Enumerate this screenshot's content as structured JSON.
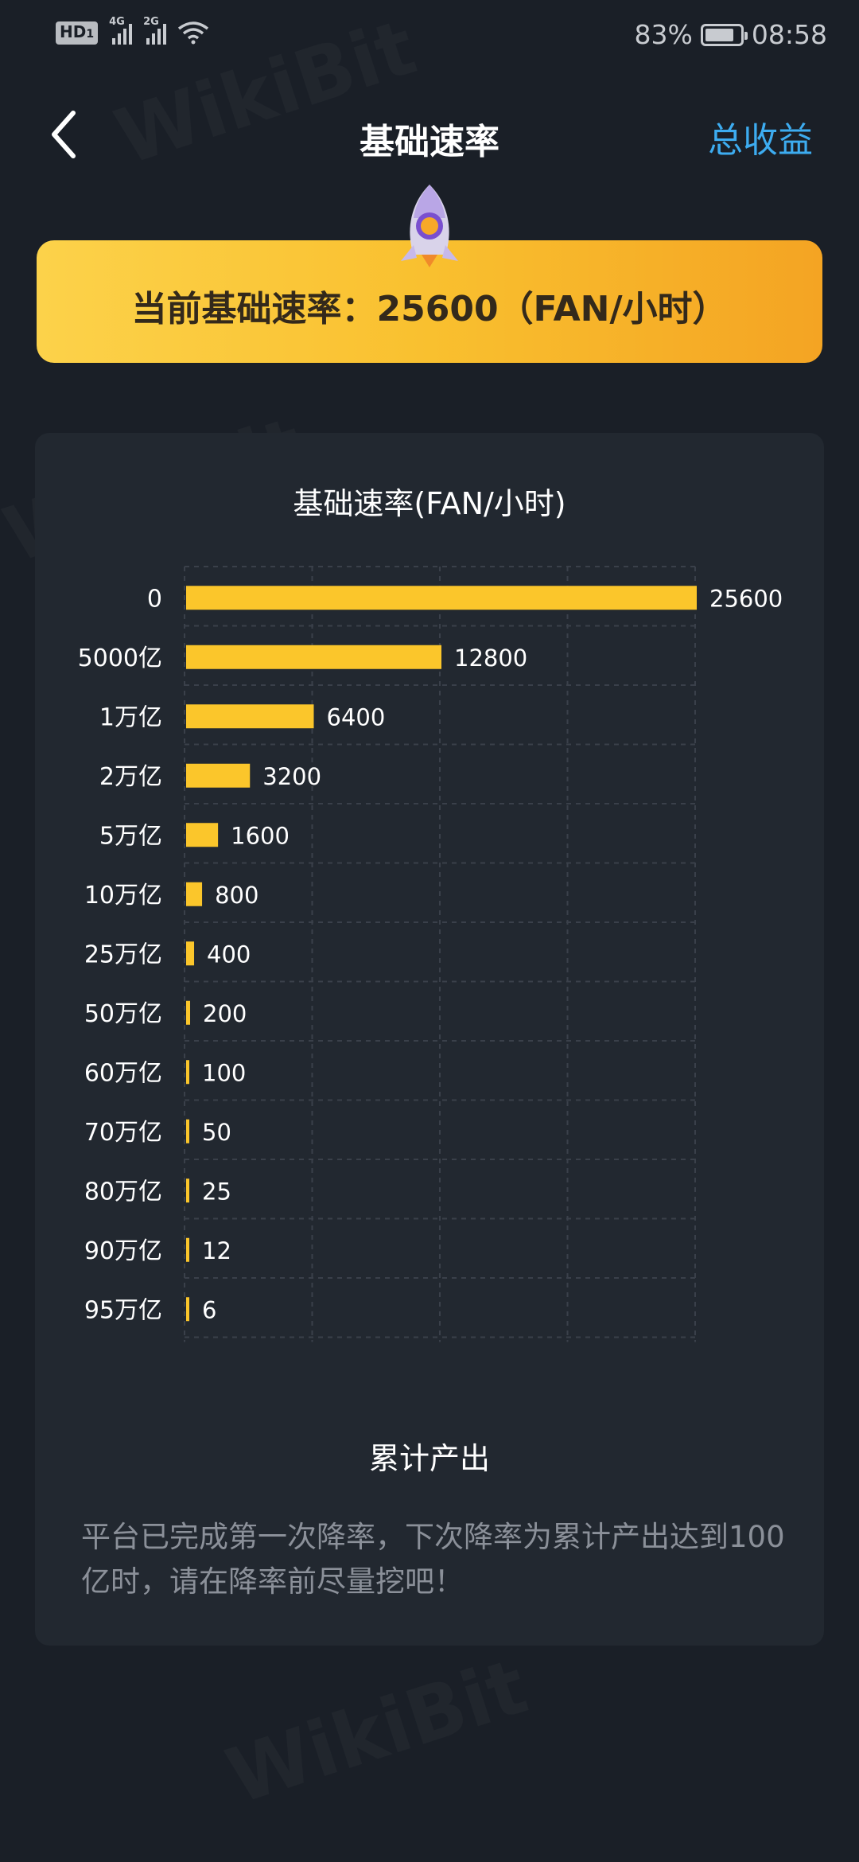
{
  "status_bar": {
    "hd": "HD",
    "hd_sub": "1",
    "net1": "4G",
    "net2": "2G",
    "battery_percent": "83%",
    "battery_level": 0.83,
    "time": "08:58"
  },
  "header": {
    "title": "基础速率",
    "total_label": "总收益"
  },
  "banner": {
    "text": "当前基础速率：25600（FAN/小时）"
  },
  "chart_data": {
    "type": "bar",
    "orientation": "horizontal",
    "title": "基础速率(FAN/小时)",
    "categories": [
      "0",
      "5000亿",
      "1万亿",
      "2万亿",
      "5万亿",
      "10万亿",
      "25万亿",
      "50万亿",
      "60万亿",
      "70万亿",
      "80万亿",
      "90万亿",
      "95万亿"
    ],
    "values": [
      25600,
      12800,
      6400,
      3200,
      1600,
      800,
      400,
      200,
      100,
      50,
      25,
      12,
      6
    ],
    "xlim": [
      0,
      25600
    ],
    "grid": true,
    "bar_color": "#fbc62b"
  },
  "output": {
    "title": "累计产出",
    "notice": "平台已完成第一次降率，下次降率为累计产出达到100亿时，请在降率前尽量挖吧！"
  },
  "colors": {
    "background": "#1a1f27",
    "card": "#222830",
    "accent_blue": "#3dacf0",
    "banner_start": "#fcd24a",
    "banner_end": "#f4a423"
  }
}
